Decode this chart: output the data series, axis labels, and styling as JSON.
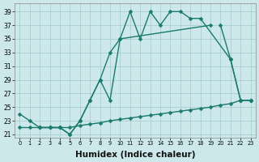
{
  "bg_color": "#cde8ea",
  "grid_color": "#aacfd2",
  "line_color": "#1a7a6e",
  "line_width": 1.0,
  "marker_size": 2.5,
  "xlabel": "Humidex (Indice chaleur)",
  "xlabel_fontsize": 7.5,
  "ytick_values": [
    21,
    23,
    25,
    27,
    29,
    31,
    33,
    35,
    37,
    39
  ],
  "xlim": [
    -0.5,
    23.5
  ],
  "ylim": [
    20.5,
    40.2
  ],
  "line1_x": [
    0,
    1,
    2,
    3,
    4,
    5,
    6,
    7,
    8,
    9,
    10,
    11,
    12,
    13,
    14,
    15,
    16,
    17,
    18,
    21,
    22,
    23
  ],
  "line1_y": [
    24,
    23,
    22,
    22,
    22,
    21,
    23,
    26,
    29,
    33,
    35,
    39,
    35,
    39,
    37,
    39,
    39,
    38,
    38,
    32,
    26,
    26
  ],
  "line2_x": [
    2,
    3,
    4,
    5,
    6,
    7,
    8,
    9,
    10,
    19,
    20,
    21,
    22,
    23
  ],
  "line2_y": [
    22,
    22,
    22,
    21,
    23,
    26,
    29,
    26,
    35,
    37,
    37,
    32,
    26,
    26
  ],
  "line3_x": [
    0,
    1,
    2,
    3,
    4,
    5,
    6,
    7,
    8,
    9,
    10,
    11,
    12,
    13,
    14,
    15,
    16,
    17,
    18,
    19,
    20,
    21,
    22,
    23
  ],
  "line3_y": [
    22,
    22,
    22,
    22,
    22,
    22,
    22.3,
    22.5,
    22.7,
    23,
    23.2,
    23.4,
    23.6,
    23.8,
    24,
    24.2,
    24.4,
    24.6,
    24.8,
    25,
    25.3,
    25.5,
    26,
    26
  ]
}
